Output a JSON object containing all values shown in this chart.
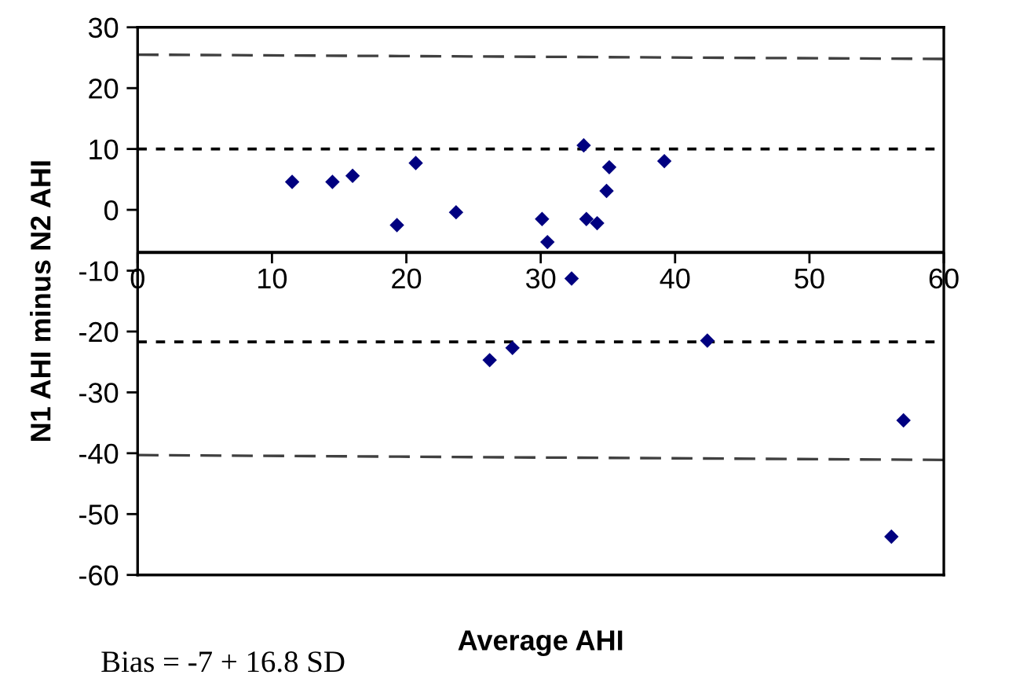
{
  "chart_data": {
    "type": "scatter",
    "xlabel": "Average AHI",
    "ylabel": "N1 AHI minus N2 AHI",
    "annotations": [
      "Bias = -7 + 16.8 SD"
    ],
    "xlim": [
      0,
      60
    ],
    "xticks": [
      0,
      10,
      20,
      30,
      40,
      50,
      60
    ],
    "ylim": [
      -60,
      30
    ],
    "yticks": [
      -60,
      -50,
      -40,
      -30,
      -20,
      -10,
      0,
      10,
      20,
      30
    ],
    "grid": false,
    "marker": "diamond",
    "series": [
      {
        "color": "#000080",
        "x": [
          11.5,
          14.5,
          16.0,
          19.3,
          20.7,
          23.7,
          26.2,
          27.9,
          30.1,
          30.5,
          32.3,
          33.2,
          33.4,
          34.2,
          34.9,
          35.1,
          39.2,
          42.4,
          56.1,
          57.0
        ],
        "values": [
          4.6,
          4.6,
          5.6,
          -2.5,
          7.7,
          -0.4,
          -24.7,
          -22.7,
          -1.5,
          -5.3,
          -11.3,
          10.6,
          -1.5,
          -2.2,
          3.1,
          7.0,
          8.0,
          -21.5,
          -53.7,
          -34.6
        ]
      },
      {
        "type": "line",
        "color": "#404040",
        "line_style": "dashed",
        "marker": "none",
        "x": [
          0,
          60
        ],
        "values": [
          25.5,
          24.8
        ]
      },
      {
        "type": "line",
        "color": "#404040",
        "line_style": "dashed",
        "marker": "none",
        "x": [
          0,
          60
        ],
        "values": [
          -40.3,
          -41.1
        ]
      }
    ],
    "ref_lines": [
      {
        "axis": "y",
        "value": -7,
        "line_style": "solid",
        "color": "#000000"
      },
      {
        "axis": "y",
        "value": 10,
        "line_style": "dotted",
        "color": "#000000"
      },
      {
        "axis": "y",
        "value": -21.7,
        "line_style": "dotted",
        "color": "#000000"
      }
    ]
  }
}
